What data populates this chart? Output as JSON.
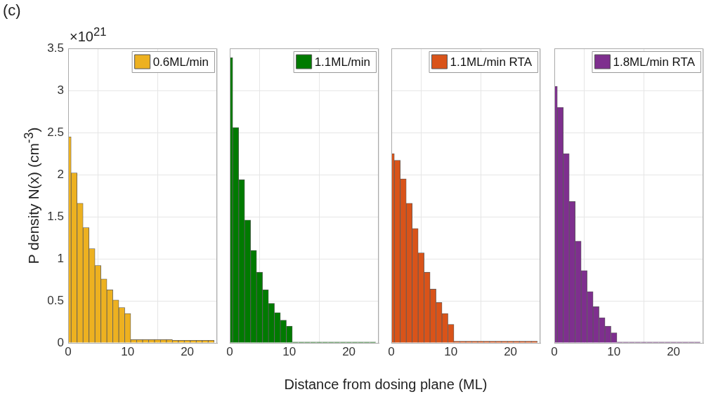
{
  "chart_data": [
    {
      "type": "histogram",
      "xlabel": "Distance from dosing plane (ML)",
      "ylabel": "P density N(x) (cm$^{-3}$)",
      "annotations": [
        "(c)",
        "×10$^{21}$"
      ],
      "bins": [
        -0.5,
        0.5,
        1.5,
        2.5,
        3.5,
        4.5,
        5.5,
        6.5,
        7.5,
        8.5,
        9.5,
        10.5,
        11.5,
        12.5,
        13.5,
        14.5,
        15.5,
        16.5,
        17.5,
        18.5,
        19.5,
        20.5,
        21.5,
        22.5,
        23.5,
        24.5
      ],
      "series": [
        {
          "name": "0.6ML/min",
          "color": "#edb120",
          "values": [
            2.45,
            2.02,
            1.66,
            1.37,
            1.12,
            0.92,
            0.76,
            0.63,
            0.51,
            0.42,
            0.35,
            0.04,
            0.04,
            0.04,
            0.04,
            0.04,
            0.04,
            0.04,
            0.03,
            0.03,
            0.03,
            0.03,
            0.03,
            0.03,
            0.03
          ]
        }
      ],
      "xlim": [
        0,
        25
      ],
      "xticks": [
        0,
        10,
        20
      ],
      "ylim": [
        0,
        3.5
      ],
      "yticks": [
        0,
        0.5,
        1,
        1.5,
        2,
        2.5,
        3,
        3.5
      ],
      "grid": true,
      "legend": "top right"
    },
    {
      "type": "histogram",
      "bins": [
        -0.5,
        0.5,
        1.5,
        2.5,
        3.5,
        4.5,
        5.5,
        6.5,
        7.5,
        8.5,
        9.5,
        10.5,
        11.5,
        12.5,
        13.5,
        14.5,
        15.5,
        16.5,
        17.5,
        18.5,
        19.5,
        20.5,
        21.5,
        22.5,
        23.5,
        24.5
      ],
      "series": [
        {
          "name": "1.1ML/min",
          "color": "#007a00",
          "values": [
            3.39,
            2.56,
            1.94,
            1.46,
            1.1,
            0.84,
            0.63,
            0.47,
            0.36,
            0.27,
            0.2,
            0.01,
            0.01,
            0.01,
            0.01,
            0.01,
            0.01,
            0.01,
            0.01,
            0.01,
            0.01,
            0.01,
            0.01,
            0.01,
            0.01
          ]
        }
      ],
      "xlim": [
        0,
        25
      ],
      "xticks": [
        0,
        10,
        20
      ],
      "ylim": [
        0,
        3.5
      ],
      "yticks": [
        0,
        0.5,
        1,
        1.5,
        2,
        2.5,
        3,
        3.5
      ],
      "grid": true,
      "legend": "top right",
      "tick_labels": "x"
    },
    {
      "type": "histogram",
      "bins": [
        -0.5,
        0.5,
        1.5,
        2.5,
        3.5,
        4.5,
        5.5,
        6.5,
        7.5,
        8.5,
        9.5,
        10.5,
        11.5,
        12.5,
        13.5,
        14.5,
        15.5,
        16.5,
        17.5,
        18.5,
        19.5,
        20.5,
        21.5,
        22.5,
        23.5,
        24.5
      ],
      "series": [
        {
          "name": "1.1ML/min RTA",
          "color": "#d95319",
          "values": [
            2.25,
            2.17,
            1.95,
            1.66,
            1.36,
            1.07,
            0.84,
            0.64,
            0.48,
            0.35,
            0.22,
            0.02,
            0.02,
            0.02,
            0.02,
            0.02,
            0.02,
            0.02,
            0.02,
            0.02,
            0.02,
            0.02,
            0.02,
            0.02,
            0.02
          ]
        }
      ],
      "xlim": [
        0,
        25
      ],
      "xticks": [
        0,
        10,
        20
      ],
      "ylim": [
        0,
        3.5
      ],
      "yticks": [
        0,
        0.5,
        1,
        1.5,
        2,
        2.5,
        3,
        3.5
      ],
      "grid": true,
      "legend": "top right",
      "tick_labels": "x"
    },
    {
      "type": "histogram",
      "bins": [
        -0.5,
        0.5,
        1.5,
        2.5,
        3.5,
        4.5,
        5.5,
        6.5,
        7.5,
        8.5,
        9.5,
        10.5,
        11.5,
        12.5,
        13.5,
        14.5,
        15.5,
        16.5,
        17.5,
        18.5,
        19.5,
        20.5,
        21.5,
        22.5,
        23.5,
        24.5
      ],
      "series": [
        {
          "name": "1.8ML/min RTA",
          "color": "#7e2f8e",
          "values": [
            3.05,
            2.8,
            2.25,
            1.68,
            1.21,
            0.86,
            0.61,
            0.43,
            0.3,
            0.2,
            0.12,
            0.01,
            0.01,
            0.01,
            0.01,
            0.01,
            0.01,
            0.01,
            0.01,
            0.01,
            0.01,
            0.01,
            0.01,
            0.01,
            0.01
          ]
        }
      ],
      "xlim": [
        0,
        25
      ],
      "xticks": [
        0,
        10,
        20
      ],
      "ylim": [
        0,
        3.5
      ],
      "yticks": [
        0,
        0.5,
        1,
        1.5,
        2,
        2.5,
        3,
        3.5
      ],
      "grid": true,
      "legend": "top right",
      "tick_labels": "x"
    }
  ]
}
